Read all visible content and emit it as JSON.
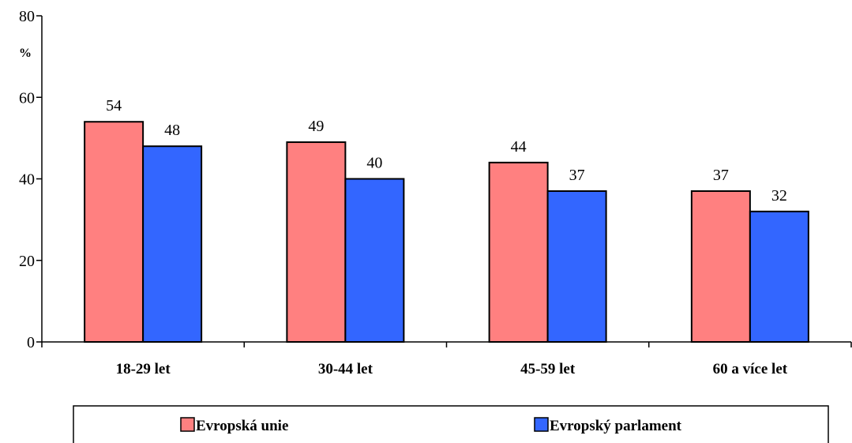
{
  "chart_data": {
    "type": "bar",
    "title": "",
    "xlabel": "",
    "ylabel": "%",
    "ylim": [
      0,
      80
    ],
    "yticks": [
      0,
      20,
      40,
      60,
      80
    ],
    "grid": false,
    "legend_position": "bottom",
    "categories": [
      "18-29 let",
      "30-44 let",
      "45-59 let",
      "60 a více let"
    ],
    "series": [
      {
        "name": "Evropská unie",
        "values": [
          54,
          49,
          44,
          37
        ],
        "color": "#FF8080"
      },
      {
        "name": "Evropský parlament",
        "values": [
          48,
          40,
          37,
          32
        ],
        "color": "#3366FF"
      }
    ]
  }
}
